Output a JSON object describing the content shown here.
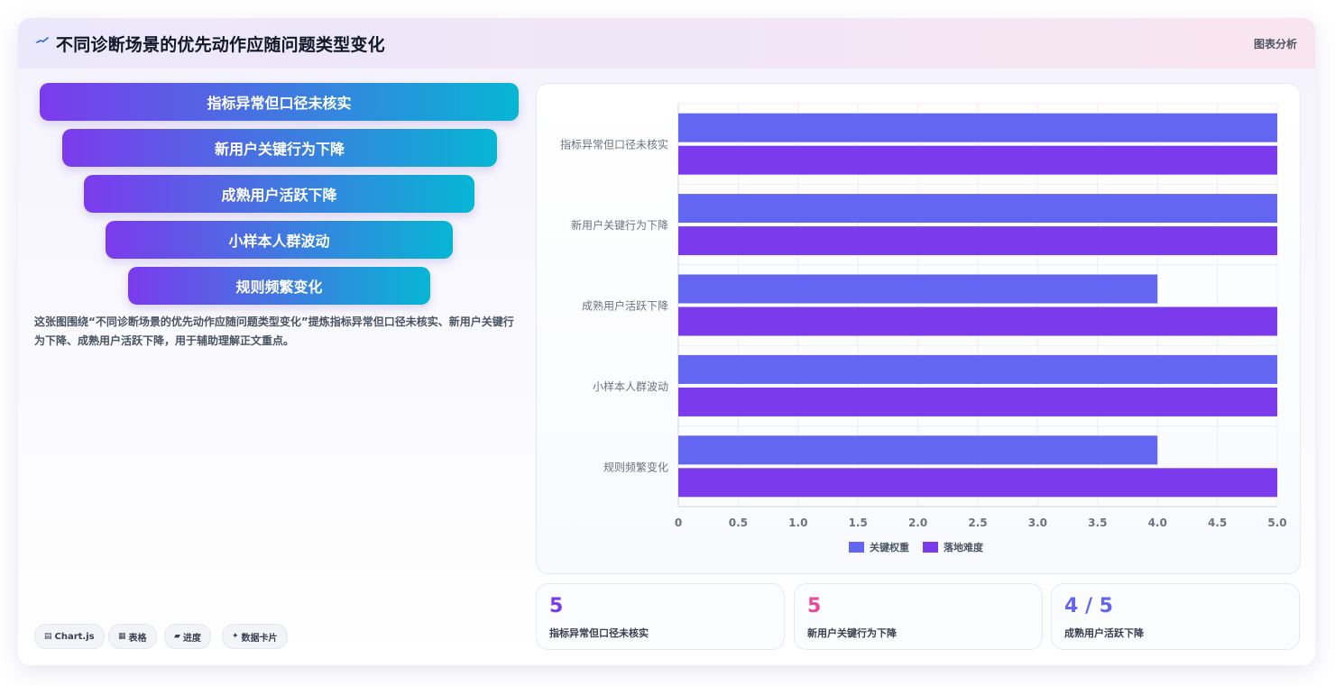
{
  "header": {
    "title": "不同诊断场景的优先动作应随问题类型变化",
    "tag": "图表分析"
  },
  "funnel": {
    "items": [
      "指标异常但口径未核实",
      "新用户关键行为下降",
      "成熟用户活跃下降",
      "小样本人群波动",
      "规则频繁变化"
    ]
  },
  "description": "这张图围绕“不同诊断场景的优先动作应随问题类型变化”提炼指标异常但口径未核实、新用户关键行为下降、成熟用户活跃下降，用于辅助理解正文重点。",
  "chips": [
    {
      "icon": "chart-icon",
      "glyph": "▤",
      "label": "Chart.js"
    },
    {
      "icon": "table-icon",
      "glyph": "▦",
      "label": "表格"
    },
    {
      "icon": "progress-icon",
      "glyph": "▰",
      "label": "进度"
    },
    {
      "icon": "sparkle-icon",
      "glyph": "✦",
      "label": "数据卡片"
    }
  ],
  "chart_data": {
    "type": "bar",
    "orientation": "horizontal",
    "categories": [
      "指标异常但口径未核实",
      "新用户关键行为下降",
      "成熟用户活跃下降",
      "小样本人群波动",
      "规则频繁变化"
    ],
    "series": [
      {
        "name": "关键权重",
        "color": "#6366f1",
        "values": [
          5,
          5,
          4,
          5,
          4
        ]
      },
      {
        "name": "落地难度",
        "color": "#7c3aed",
        "values": [
          5,
          5,
          5,
          5,
          5
        ]
      }
    ],
    "xlim": [
      0,
      5
    ],
    "xticks": [
      "0",
      "0.5",
      "1.0",
      "1.5",
      "2.0",
      "2.5",
      "3.0",
      "3.5",
      "4.0",
      "4.5",
      "5.0"
    ],
    "grid": true,
    "legend": "bottom"
  },
  "stats": [
    {
      "value": "5",
      "label": "指标异常但口径未核实",
      "color": "#7c3aed"
    },
    {
      "value": "5",
      "label": "新用户关键行为下降",
      "color": "#ec4899"
    },
    {
      "value": "4 / 5",
      "label": "成熟用户活跃下降",
      "color": "#6366f1"
    }
  ],
  "colors": {
    "accent_start": "#7c3aed",
    "accent_end": "#06b6d4"
  }
}
